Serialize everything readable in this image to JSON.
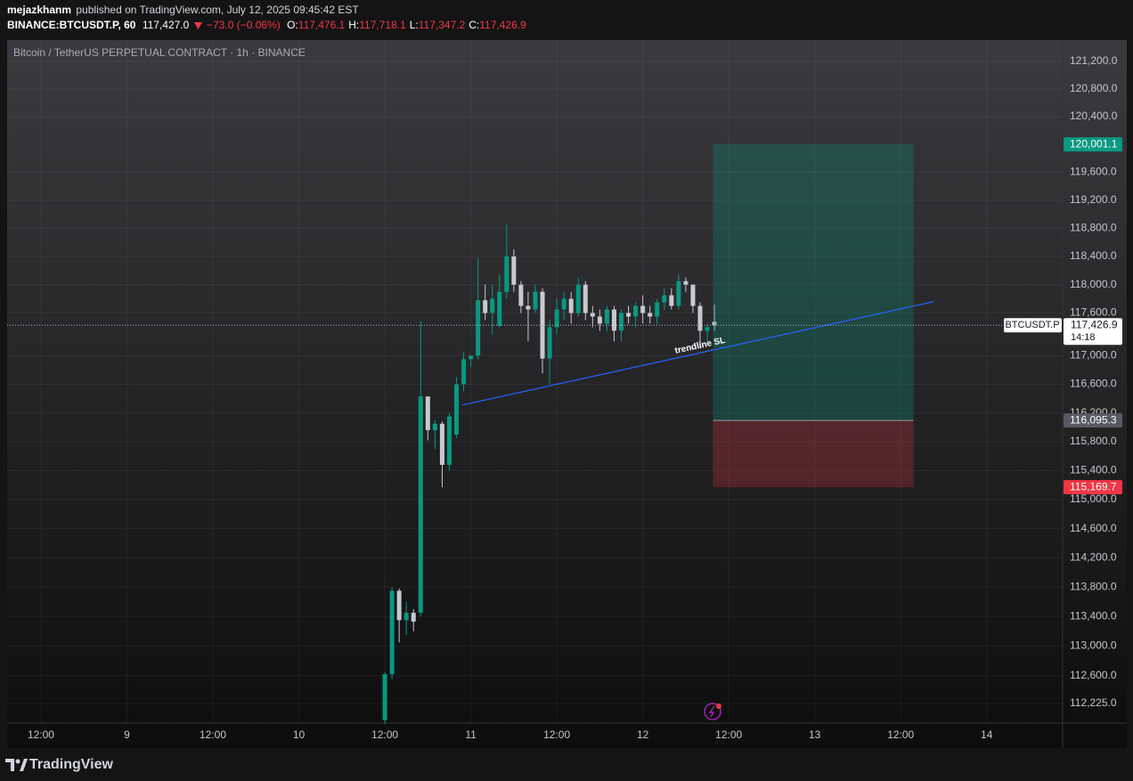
{
  "header": {
    "author": "mejazkhanm",
    "published": "published on TradingView.com, July 12, 2025 09:45:42 EST",
    "symbol": "BINANCE:BTCUSDT.P, 60",
    "last": "117,427.0",
    "change": "−73.0 (−0.06%)",
    "ohlc": [
      {
        "label": "O:",
        "value": "117,476.1"
      },
      {
        "label": "H:",
        "value": "117,718.1"
      },
      {
        "label": "L:",
        "value": "117,347.2"
      },
      {
        "label": "C:",
        "value": "117,426.9"
      }
    ]
  },
  "footer": {
    "brand": "TradingView"
  },
  "chart_data": {
    "type": "candlestick",
    "title": "Bitcoin / TetherUS PERPETUAL CONTRACT · 1h · BINANCE",
    "log_scale": true,
    "grid": true,
    "up_color": "#089981",
    "down_color": "#c7c9d0",
    "xlim": [
      -4.72,
      142.6
    ],
    "xticks": [
      {
        "value": 0,
        "label": "12:00"
      },
      {
        "value": 12,
        "label": "9"
      },
      {
        "value": 24,
        "label": "12:00"
      },
      {
        "value": 36,
        "label": "10"
      },
      {
        "value": 48,
        "label": "12:00"
      },
      {
        "value": 60,
        "label": "11"
      },
      {
        "value": 72,
        "label": "12:00"
      },
      {
        "value": 84,
        "label": "12"
      },
      {
        "value": 96,
        "label": "12:00"
      },
      {
        "value": 108,
        "label": "13"
      },
      {
        "value": 120,
        "label": "12:00"
      },
      {
        "value": 132,
        "label": "14"
      }
    ],
    "ylim": [
      111960,
      121510
    ],
    "yticks": [
      {
        "value": 121200,
        "label": "121,200.0"
      },
      {
        "value": 120800,
        "label": "120,800.0"
      },
      {
        "value": 120400,
        "label": "120,400.0"
      },
      {
        "value": 119600,
        "label": "119,600.0"
      },
      {
        "value": 119200,
        "label": "119,200.0"
      },
      {
        "value": 118800,
        "label": "118,800.0"
      },
      {
        "value": 118400,
        "label": "118,400.0"
      },
      {
        "value": 118000,
        "label": "118,000.0"
      },
      {
        "value": 117600,
        "label": "117,600.0"
      },
      {
        "value": 117000,
        "label": "117,000.0"
      },
      {
        "value": 116600,
        "label": "116,600.0"
      },
      {
        "value": 116200,
        "label": "116,200.0"
      },
      {
        "value": 115800,
        "label": "115,800.0"
      },
      {
        "value": 115400,
        "label": "115,400.0"
      },
      {
        "value": 115000,
        "label": "115,000.0"
      },
      {
        "value": 114600,
        "label": "114,600.0"
      },
      {
        "value": 114200,
        "label": "114,200.0"
      },
      {
        "value": 113800,
        "label": "113,800.0"
      },
      {
        "value": 113400,
        "label": "113,400.0"
      },
      {
        "value": 113000,
        "label": "113,000.0"
      },
      {
        "value": 112600,
        "label": "112,600.0"
      },
      {
        "value": 112225,
        "label": "112,225.0"
      }
    ],
    "x": [
      48,
      49,
      50,
      51,
      52,
      53,
      54,
      55,
      56,
      57,
      58,
      59,
      60,
      61,
      62,
      63,
      64,
      65,
      66,
      67,
      68,
      69,
      70,
      71,
      72,
      73,
      74,
      75,
      76,
      77,
      78,
      79,
      80,
      81,
      82,
      83,
      84,
      85,
      86,
      87,
      88,
      89,
      90,
      91,
      92,
      93,
      94
    ],
    "open": [
      112000,
      112620,
      113750,
      113350,
      113450,
      113450,
      116430,
      115960,
      116050,
      115480,
      115900,
      116600,
      116950,
      117000,
      117780,
      117600,
      117420,
      117900,
      118400,
      118000,
      117700,
      117650,
      117900,
      116960,
      117400,
      117650,
      117800,
      117600,
      118000,
      117600,
      117550,
      117450,
      117650,
      117350,
      117600,
      117550,
      117700,
      117600,
      117550,
      117750,
      117850,
      117700,
      118050,
      118000,
      117700,
      117350,
      117476.1
    ],
    "high": [
      112650,
      113800,
      113780,
      113600,
      113500,
      117490,
      116430,
      116100,
      116080,
      116200,
      116700,
      117050,
      117000,
      118370,
      118000,
      118000,
      118150,
      118850,
      118500,
      118050,
      117900,
      118000,
      117950,
      117500,
      117800,
      117900,
      117900,
      118100,
      118050,
      117700,
      117650,
      117700,
      117700,
      117650,
      117700,
      117750,
      117850,
      117700,
      117800,
      117950,
      117950,
      118150,
      118100,
      118000,
      117750,
      117450,
      117718.1
    ],
    "low": [
      111950,
      112550,
      113050,
      113150,
      113200,
      113400,
      115820,
      115700,
      115170,
      115400,
      115850,
      116500,
      116850,
      116950,
      117500,
      117300,
      117400,
      117800,
      117900,
      117600,
      117200,
      117600,
      116750,
      116600,
      117300,
      117500,
      117450,
      117550,
      117500,
      117400,
      117350,
      117350,
      117200,
      117200,
      117450,
      117400,
      117450,
      117450,
      117450,
      117650,
      117650,
      117650,
      117900,
      117600,
      117100,
      117150,
      117347.2
    ],
    "close": [
      112620,
      113750,
      113350,
      113450,
      113330,
      116430,
      115960,
      116050,
      115480,
      116150,
      116600,
      116950,
      117000,
      117780,
      117600,
      117800,
      117900,
      118400,
      118000,
      117700,
      117650,
      117900,
      116960,
      117400,
      117650,
      117800,
      117600,
      118000,
      117600,
      117550,
      117450,
      117650,
      117350,
      117600,
      117550,
      117700,
      117600,
      117550,
      117750,
      117850,
      117700,
      118050,
      118000,
      117700,
      117350,
      117400,
      117426.9
    ],
    "last_price": {
      "value": 117426.9,
      "label": "117,426.9"
    },
    "symbol_tag": "BTCUSDT.P",
    "countdown": "14:18",
    "trendline": {
      "x": [
        58.8,
        124.6
      ],
      "y": [
        116310,
        117760
      ],
      "label": "trendline SL",
      "color": "#2962ff"
    },
    "position": {
      "x": [
        93.8,
        121.8
      ],
      "target": {
        "value": 120001.1,
        "label": "120,001.1"
      },
      "entry": {
        "value": 116095.3,
        "label": "116,095.3"
      },
      "stop": {
        "value": 115169.7,
        "label": "115,169.7"
      },
      "target_color": "#089981",
      "stop_color": "#f23645"
    }
  }
}
